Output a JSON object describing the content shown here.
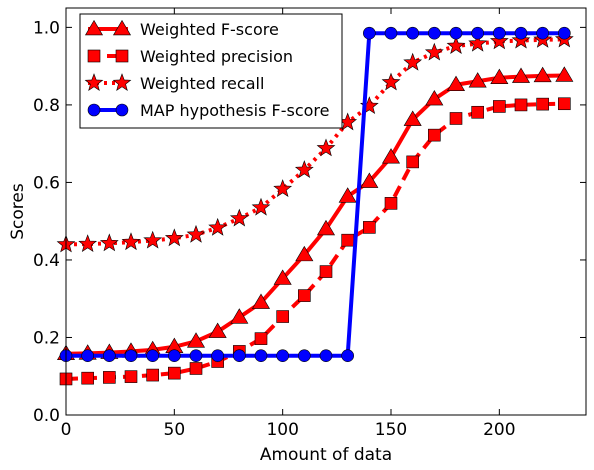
{
  "chart_data": {
    "type": "line",
    "title": "",
    "xlabel": "Amount of data",
    "ylabel": "Scores",
    "xlim": [
      0,
      240
    ],
    "ylim": [
      0.0,
      1.05
    ],
    "xticks": [
      0,
      50,
      100,
      150,
      200
    ],
    "yticks": [
      0.0,
      0.2,
      0.4,
      0.6,
      0.8,
      1.0
    ],
    "grid": false,
    "legend_position": "top-left",
    "x": [
      0,
      10,
      20,
      30,
      40,
      50,
      60,
      70,
      80,
      90,
      100,
      110,
      120,
      130,
      140,
      150,
      160,
      170,
      180,
      190,
      200,
      210,
      220,
      230
    ],
    "series": [
      {
        "name": "Weighted F-score",
        "color": "#ff0000",
        "line": "solid",
        "marker": "triangle",
        "values": [
          0.158,
          0.159,
          0.161,
          0.164,
          0.168,
          0.176,
          0.19,
          0.215,
          0.252,
          0.29,
          0.352,
          0.413,
          0.48,
          0.564,
          0.602,
          0.665,
          0.762,
          0.815,
          0.852,
          0.861,
          0.87,
          0.873,
          0.875,
          0.876
        ]
      },
      {
        "name": "Weighted precision",
        "color": "#ff0000",
        "line": "dashed",
        "marker": "square",
        "values": [
          0.093,
          0.095,
          0.097,
          0.099,
          0.103,
          0.108,
          0.12,
          0.138,
          0.164,
          0.197,
          0.254,
          0.308,
          0.37,
          0.451,
          0.484,
          0.546,
          0.653,
          0.722,
          0.765,
          0.781,
          0.796,
          0.8,
          0.802,
          0.803
        ]
      },
      {
        "name": "Weighted recall",
        "color": "#ff0000",
        "line": "dotted",
        "marker": "star",
        "values": [
          0.44,
          0.441,
          0.443,
          0.446,
          0.45,
          0.456,
          0.465,
          0.483,
          0.507,
          0.535,
          0.583,
          0.632,
          0.688,
          0.755,
          0.797,
          0.858,
          0.909,
          0.935,
          0.952,
          0.958,
          0.964,
          0.966,
          0.968,
          0.969
        ]
      },
      {
        "name": "MAP hypothesis F-score",
        "color": "#0000ff",
        "line": "solid",
        "marker": "circle",
        "values": [
          0.153,
          0.153,
          0.153,
          0.153,
          0.153,
          0.153,
          0.153,
          0.153,
          0.153,
          0.153,
          0.153,
          0.153,
          0.153,
          0.153,
          0.985,
          0.985,
          0.985,
          0.985,
          0.985,
          0.985,
          0.985,
          0.985,
          0.985,
          0.985
        ]
      }
    ]
  }
}
